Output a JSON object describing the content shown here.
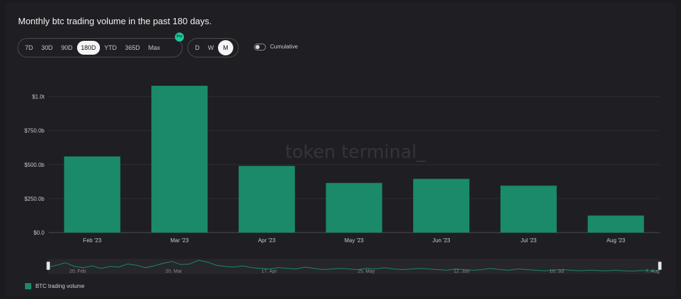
{
  "header": {
    "title": "Monthly btc trading volume in the past 180 days."
  },
  "range_buttons": [
    "7D",
    "30D",
    "90D",
    "180D",
    "YTD",
    "365D",
    "Max"
  ],
  "range_active": "180D",
  "pro_badge": "Pro",
  "granularity_buttons": [
    "D",
    "W",
    "M"
  ],
  "granularity_active": "M",
  "cumulative": {
    "label": "Cumulative",
    "enabled": false
  },
  "watermark": "token terminal_",
  "colors": {
    "bar": "#1a8a6a",
    "navigator_line": "#1a8a6a",
    "accent": "#1ec79a"
  },
  "chart_data": {
    "type": "bar",
    "title": "Monthly btc trading volume in the past 180 days.",
    "categories": [
      "Feb '23",
      "Mar '23",
      "Apr '23",
      "May '23",
      "Jun '23",
      "Jul '23",
      "Aug '23"
    ],
    "series": [
      {
        "name": "BTC trading volume",
        "values": [
          560,
          1080,
          490,
          365,
          395,
          345,
          125
        ]
      }
    ],
    "unit": "$ billions",
    "ylim": [
      0,
      1100
    ],
    "yticks": [
      0,
      250,
      500,
      750,
      1000
    ],
    "ytick_labels": [
      "$0.0",
      "$250.0b",
      "$500.0b",
      "$750.0b",
      "$1.0t"
    ],
    "grid": true,
    "legend_placement": "bottom-left"
  },
  "navigator": {
    "labels": [
      "20. Feb",
      "20. Mar",
      "17. Apr",
      "15. May",
      "12. Jun",
      "10. Jul",
      "7. Aug"
    ],
    "values": [
      0.45,
      0.6,
      0.8,
      0.5,
      0.4,
      0.55,
      0.35,
      0.5,
      0.45,
      0.7,
      0.6,
      0.4,
      0.55,
      0.75,
      0.9,
      0.65,
      0.7,
      1.0,
      0.85,
      0.6,
      0.5,
      0.45,
      0.55,
      0.4,
      0.35,
      0.3,
      0.4,
      0.35,
      0.3,
      0.45,
      0.35,
      0.25,
      0.3,
      0.35,
      0.3,
      0.25,
      0.35,
      0.3,
      0.4,
      0.3,
      0.25,
      0.3,
      0.35,
      0.3,
      0.25,
      0.2,
      0.3,
      0.25,
      0.2,
      0.25,
      0.35,
      0.25,
      0.2,
      0.3,
      0.25,
      0.2,
      0.15,
      0.2,
      0.25,
      0.2,
      0.15,
      0.2,
      0.18,
      0.15,
      0.2,
      0.15,
      0.12,
      0.18,
      0.15,
      0.2
    ]
  }
}
